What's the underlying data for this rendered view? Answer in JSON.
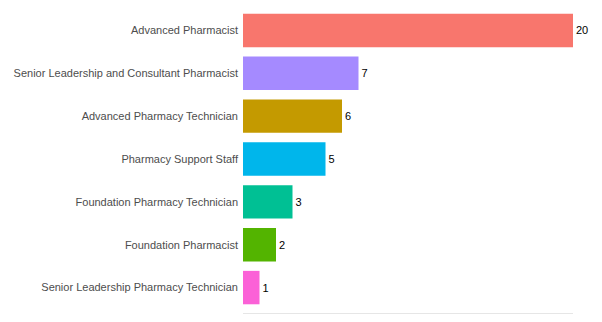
{
  "chart_data": {
    "type": "bar",
    "orientation": "horizontal",
    "categories": [
      "Advanced Pharmacist",
      "Senior Leadership and Consultant Pharmacist",
      "Advanced Pharmacy Technician",
      "Pharmacy Support Staff",
      "Foundation Pharmacy Technician",
      "Foundation Pharmacist",
      "Senior Leadership Pharmacy Technician"
    ],
    "values": [
      20,
      7,
      6,
      5,
      3,
      2,
      1
    ],
    "colors": [
      "#F8766D",
      "#A58AFF",
      "#C49A00",
      "#00B6EB",
      "#00C094",
      "#53B400",
      "#FB61D7"
    ],
    "xlim": [
      0,
      20
    ],
    "data_labels": true,
    "grid": false,
    "tick_labels": "y"
  }
}
